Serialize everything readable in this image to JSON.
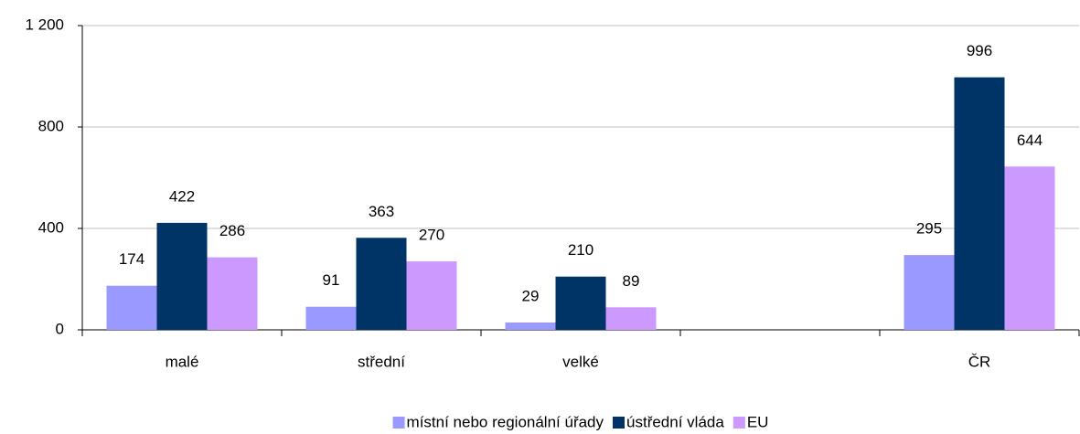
{
  "chart_data": {
    "type": "bar",
    "categories": [
      "malé",
      "střední",
      "velké",
      null,
      "ČR"
    ],
    "series": [
      {
        "name": "místní nebo regionální úřady",
        "color": "#9999ff",
        "values": [
          174,
          91,
          29,
          null,
          295
        ]
      },
      {
        "name": "ústřední vláda",
        "color": "#003366",
        "values": [
          422,
          363,
          210,
          null,
          996
        ]
      },
      {
        "name": "EU",
        "color": "#cc99ff",
        "values": [
          286,
          270,
          89,
          null,
          644
        ]
      }
    ],
    "ylim": [
      0,
      1200
    ],
    "yticks": [
      0,
      400,
      800,
      {
        "value": 1200,
        "label": "1 200"
      }
    ],
    "grid": true,
    "legend": "bottom"
  }
}
